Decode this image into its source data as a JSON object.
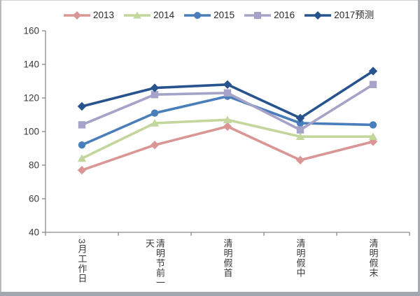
{
  "figure": {
    "background": "#ffffff",
    "frame_color": "#a2a7ae",
    "axis_color": "#8a8a8a",
    "tick_label_color": "#3a3a3a"
  },
  "chart_data": {
    "type": "line",
    "title": "",
    "xlabel": "",
    "ylabel": "",
    "grid": false,
    "legend_position": "top",
    "ylim": [
      40,
      160
    ],
    "yticks": [
      160,
      140,
      120,
      100,
      80,
      60,
      40
    ],
    "categories": [
      "3月工作日",
      "清明节前一天",
      "清明假首",
      "清明假中",
      "清明假末"
    ],
    "series": [
      {
        "name": "2013",
        "color": "#d99694",
        "marker": "diamond",
        "values": [
          77,
          92,
          103,
          83,
          94
        ]
      },
      {
        "name": "2014",
        "color": "#c3d69b",
        "marker": "triangle",
        "values": [
          84,
          105,
          107,
          97,
          97
        ]
      },
      {
        "name": "2015",
        "color": "#4a7ebb",
        "marker": "circle",
        "values": [
          92,
          111,
          121,
          105,
          104
        ]
      },
      {
        "name": "2016",
        "color": "#a6a3c9",
        "marker": "square",
        "values": [
          104,
          122,
          123,
          101,
          128
        ]
      },
      {
        "name": "2017预测",
        "color": "#27548e",
        "marker": "diamond",
        "values": [
          115,
          126,
          128,
          108,
          136
        ]
      }
    ]
  }
}
